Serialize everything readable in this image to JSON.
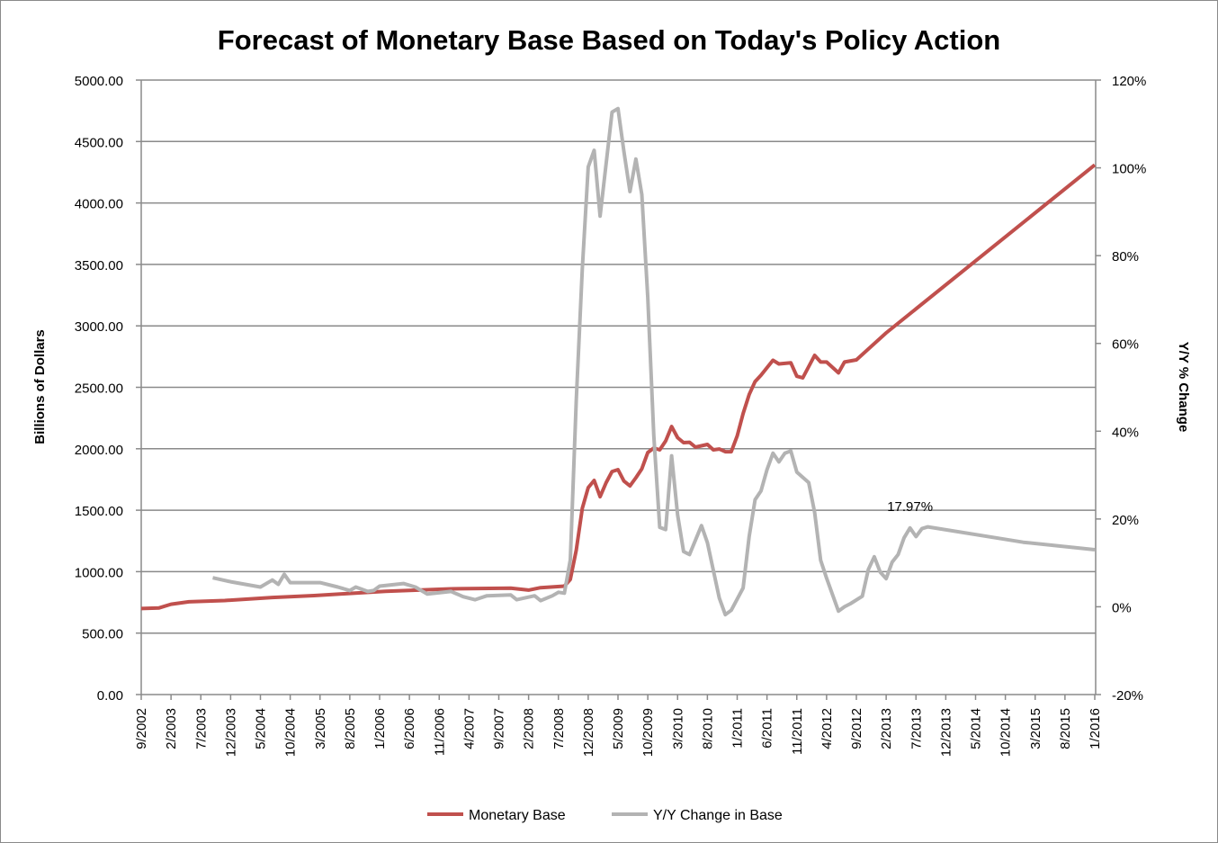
{
  "chart_data": {
    "type": "line",
    "title": "Forecast of Monetary Base Based on Today's Policy Action",
    "ylabel": "Billions of Dollars",
    "y2label": "Y/Y % Change",
    "ylim": [
      0,
      5000
    ],
    "y2lim": [
      -20,
      120
    ],
    "yticks": [
      "0.00",
      "500.00",
      "1000.00",
      "1500.00",
      "2000.00",
      "2500.00",
      "3000.00",
      "3500.00",
      "4000.00",
      "4500.00",
      "5000.00"
    ],
    "y2ticks": [
      "-20%",
      "0%",
      "20%",
      "40%",
      "60%",
      "80%",
      "100%",
      "120%"
    ],
    "xticks": [
      "9/2002",
      "2/2003",
      "7/2003",
      "12/2003",
      "5/2004",
      "10/2004",
      "3/2005",
      "8/2005",
      "1/2006",
      "6/2006",
      "11/2006",
      "4/2007",
      "9/2007",
      "2/2008",
      "7/2008",
      "12/2008",
      "5/2009",
      "10/2009",
      "3/2010",
      "8/2010",
      "1/2011",
      "6/2011",
      "11/2011",
      "4/2012",
      "9/2012",
      "2/2013",
      "7/2013",
      "12/2013",
      "5/2014",
      "10/2014",
      "3/2015",
      "8/2015",
      "1/2016"
    ],
    "grid": true,
    "legend_position": "bottom",
    "series": [
      {
        "name": "Monetary Base",
        "axis": "left",
        "color": "#C0504D",
        "points": [
          [
            "9/2002",
            700
          ],
          [
            "12/2002",
            705
          ],
          [
            "2/2003",
            735
          ],
          [
            "5/2003",
            755
          ],
          [
            "11/2003",
            765
          ],
          [
            "7/2004",
            790
          ],
          [
            "2/2005",
            805
          ],
          [
            "7/2005",
            820
          ],
          [
            "2/2006",
            840
          ],
          [
            "1/2007",
            860
          ],
          [
            "11/2007",
            865
          ],
          [
            "2/2008",
            850
          ],
          [
            "4/2008",
            870
          ],
          [
            "8/2008",
            882
          ],
          [
            "9/2008",
            937
          ],
          [
            "10/2008",
            1175
          ],
          [
            "11/2008",
            1515
          ],
          [
            "12/2008",
            1684
          ],
          [
            "1/2009",
            1742
          ],
          [
            "2/2009",
            1610
          ],
          [
            "3/2009",
            1724
          ],
          [
            "4/2009",
            1815
          ],
          [
            "5/2009",
            1830
          ],
          [
            "6/2009",
            1737
          ],
          [
            "7/2009",
            1698
          ],
          [
            "8/2009",
            1764
          ],
          [
            "9/2009",
            1837
          ],
          [
            "10/2009",
            1969
          ],
          [
            "11/2009",
            2006
          ],
          [
            "12/2009",
            1991
          ],
          [
            "1/2010",
            2064
          ],
          [
            "2/2010",
            2181
          ],
          [
            "3/2010",
            2090
          ],
          [
            "4/2010",
            2050
          ],
          [
            "5/2010",
            2053
          ],
          [
            "6/2010",
            2013
          ],
          [
            "8/2010",
            2035
          ],
          [
            "9/2010",
            1991
          ],
          [
            "10/2010",
            1998
          ],
          [
            "11/2010",
            1976
          ],
          [
            "12/2010",
            1976
          ],
          [
            "1/2011",
            2104
          ],
          [
            "2/2011",
            2287
          ],
          [
            "3/2011",
            2441
          ],
          [
            "4/2011",
            2547
          ],
          [
            "5/2011",
            2599
          ],
          [
            "7/2011",
            2720
          ],
          [
            "8/2011",
            2690
          ],
          [
            "10/2011",
            2700
          ],
          [
            "11/2011",
            2590
          ],
          [
            "12/2011",
            2577
          ],
          [
            "2/2012",
            2760
          ],
          [
            "3/2012",
            2706
          ],
          [
            "4/2012",
            2706
          ],
          [
            "6/2012",
            2618
          ],
          [
            "7/2012",
            2706
          ],
          [
            "9/2012",
            2723
          ],
          [
            "2/2013",
            2943
          ],
          [
            "1/2016",
            4310
          ]
        ]
      },
      {
        "name": "Y/Y Change in Base",
        "axis": "right",
        "color": "#B3B3B3",
        "points": [
          [
            "9/2003",
            6.6
          ],
          [
            "12/2003",
            5.7
          ],
          [
            "5/2004",
            4.5
          ],
          [
            "7/2004",
            6.1
          ],
          [
            "8/2004",
            5.1
          ],
          [
            "9/2004",
            7.4
          ],
          [
            "10/2004",
            5.5
          ],
          [
            "3/2005",
            5.5
          ],
          [
            "6/2005",
            4.5
          ],
          [
            "8/2005",
            3.7
          ],
          [
            "9/2005",
            4.5
          ],
          [
            "11/2005",
            3.5
          ],
          [
            "12/2005",
            3.7
          ],
          [
            "1/2006",
            4.7
          ],
          [
            "5/2006",
            5.3
          ],
          [
            "7/2006",
            4.5
          ],
          [
            "9/2006",
            2.9
          ],
          [
            "1/2007",
            3.5
          ],
          [
            "3/2007",
            2.3
          ],
          [
            "5/2007",
            1.6
          ],
          [
            "7/2007",
            2.5
          ],
          [
            "11/2007",
            2.7
          ],
          [
            "12/2007",
            1.6
          ],
          [
            "3/2008",
            2.5
          ],
          [
            "4/2008",
            1.4
          ],
          [
            "6/2008",
            2.5
          ],
          [
            "7/2008",
            3.3
          ],
          [
            "8/2008",
            3.1
          ],
          [
            "9/2008",
            10.7
          ],
          [
            "10/2008",
            47
          ],
          [
            "11/2008",
            76.9
          ],
          [
            "12/2008",
            100.2
          ],
          [
            "1/2009",
            104
          ],
          [
            "2/2009",
            89
          ],
          [
            "4/2009",
            112.7
          ],
          [
            "5/2009",
            113.5
          ],
          [
            "6/2009",
            103.7
          ],
          [
            "7/2009",
            94.6
          ],
          [
            "8/2009",
            102
          ],
          [
            "9/2009",
            93.9
          ],
          [
            "10/2009",
            70.5
          ],
          [
            "11/2009",
            39
          ],
          [
            "12/2009",
            18.1
          ],
          [
            "1/2010",
            17.6
          ],
          [
            "2/2010",
            34.4
          ],
          [
            "3/2010",
            20.9
          ],
          [
            "4/2010",
            12.6
          ],
          [
            "5/2010",
            11.9
          ],
          [
            "7/2010",
            18.5
          ],
          [
            "8/2010",
            14.6
          ],
          [
            "10/2010",
            2
          ],
          [
            "11/2010",
            -1.8
          ],
          [
            "12/2010",
            -0.8
          ],
          [
            "2/2011",
            4.3
          ],
          [
            "3/2011",
            16
          ],
          [
            "4/2011",
            24.4
          ],
          [
            "5/2011",
            26.4
          ],
          [
            "6/2011",
            31.2
          ],
          [
            "7/2011",
            35
          ],
          [
            "8/2011",
            33
          ],
          [
            "9/2011",
            35
          ],
          [
            "10/2011",
            35.5
          ],
          [
            "11/2011",
            30.7
          ],
          [
            "1/2012",
            28.3
          ],
          [
            "2/2012",
            21.5
          ],
          [
            "3/2012",
            10.6
          ],
          [
            "4/2012",
            6.5
          ],
          [
            "6/2012",
            -1
          ],
          [
            "7/2012",
            0
          ],
          [
            "8/2012",
            0.7
          ],
          [
            "10/2012",
            2.4
          ],
          [
            "11/2012",
            8.5
          ],
          [
            "12/2012",
            11.4
          ],
          [
            "1/2013",
            7.9
          ],
          [
            "2/2013",
            6.4
          ],
          [
            "3/2013",
            10.2
          ],
          [
            "4/2013",
            11.9
          ],
          [
            "5/2013",
            15.7
          ],
          [
            "6/2013",
            17.97
          ],
          [
            "7/2013",
            16
          ],
          [
            "8/2013",
            17.8
          ],
          [
            "9/2013",
            18.2
          ],
          [
            "1/2015",
            14.7
          ],
          [
            "1/2016",
            13
          ]
        ]
      }
    ],
    "annotations": [
      {
        "text": "17.97%",
        "series": "Y/Y Change in Base",
        "date": "6/2013"
      }
    ]
  }
}
